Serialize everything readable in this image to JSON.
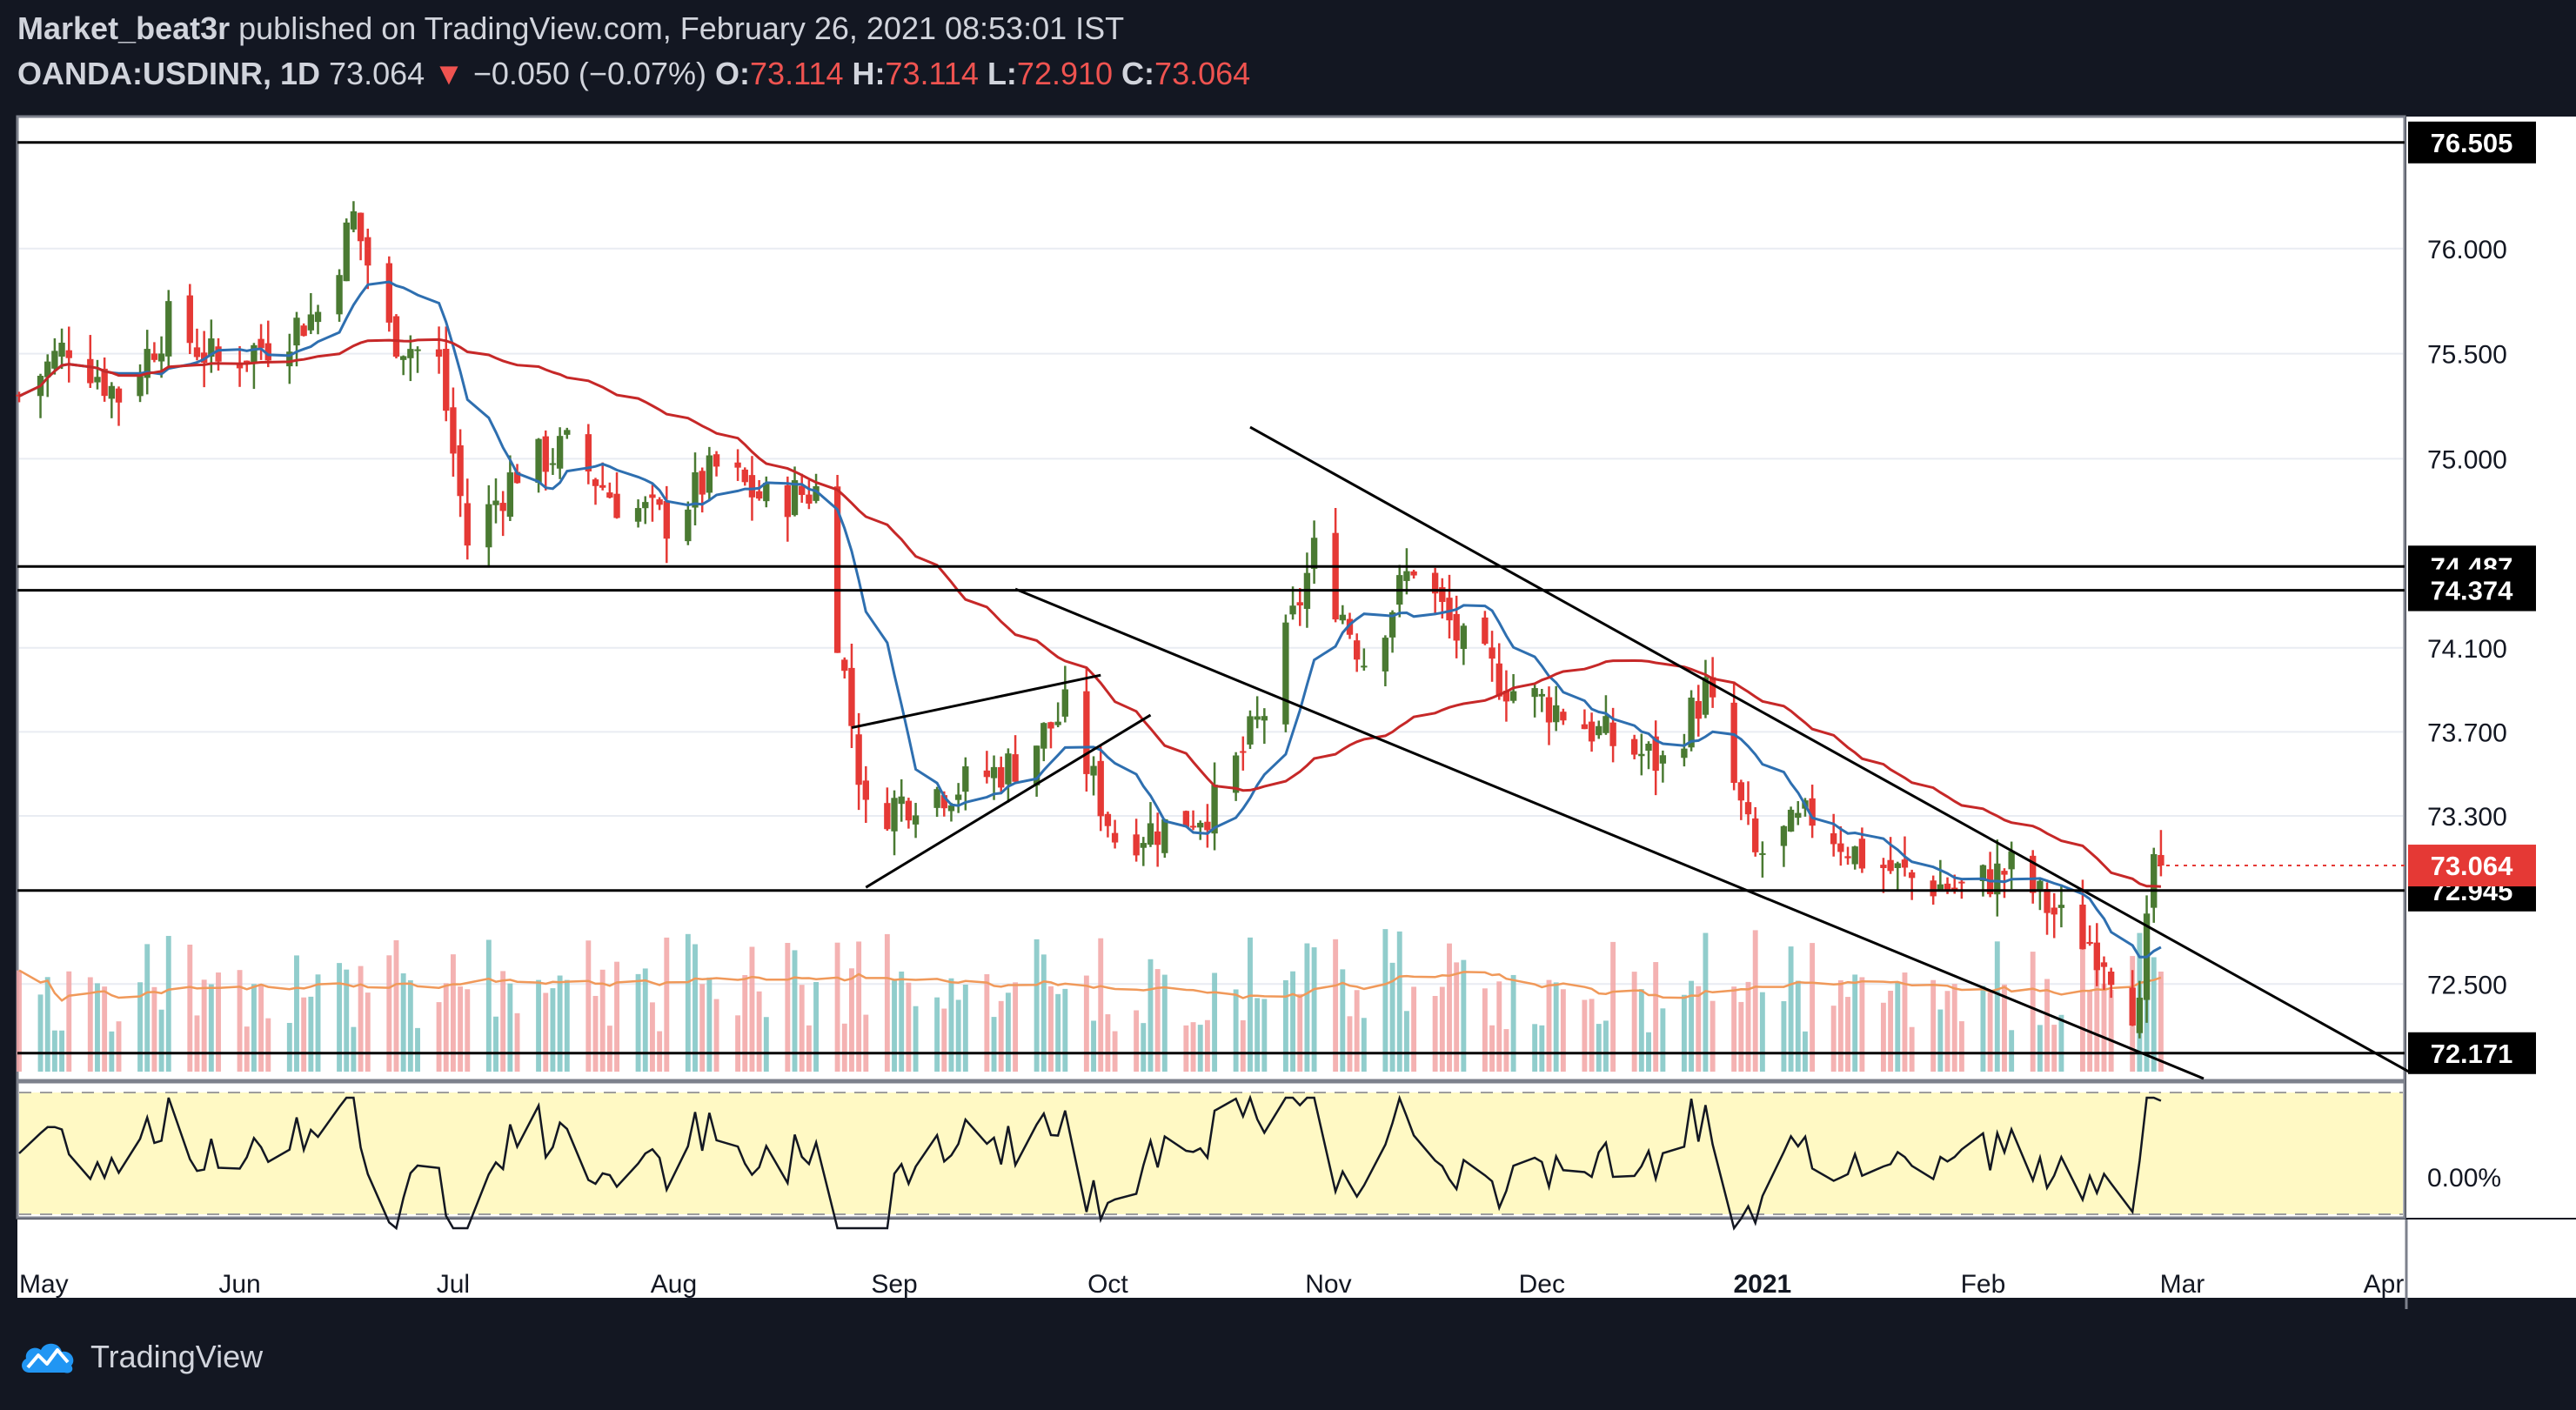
{
  "header": {
    "author": "Market_beat3r",
    "published": "published on TradingView.com, February 26, 2021 08:53:01 IST",
    "symbol": "OANDA:USDINR, 1D",
    "last": "73.064",
    "arrow": "▼",
    "change": "−0.050 (−0.07%)",
    "o_label": "O:",
    "o_value": "73.114",
    "h_label": "H:",
    "h_value": "73.114",
    "l_label": "L:",
    "l_value": "72.910",
    "c_label": "C:",
    "c_value": "73.064"
  },
  "footer": {
    "brand": "TradingView",
    "logo_icon": "tradingview-cloud-icon"
  },
  "colors": {
    "background": "#131722",
    "up": "#4a7a32",
    "down": "#e53935",
    "ma_fast": "#2e6fb0",
    "ma_slow": "#c62828",
    "vol_up": "#7ec4c3",
    "vol_down": "#f2a5a5",
    "vol_ma": "#f0995a",
    "oscillator_band": "#fff9c4"
  },
  "chart_data": {
    "type": "candlestick",
    "symbol": "OANDA:USDINR",
    "timeframe": "1D",
    "ylim": [
      72.05,
      76.62
    ],
    "y_ticks": [
      72.5,
      73.3,
      73.7,
      74.1,
      75.0,
      75.5,
      76.0
    ],
    "x_ticks": [
      "May",
      "Jun",
      "Jul",
      "Aug",
      "Sep",
      "Oct",
      "Nov",
      "Dec",
      "2021",
      "Feb",
      "Mar",
      "Apr"
    ],
    "horizontal_levels": [
      {
        "value": 76.505,
        "label": "76.505"
      },
      {
        "value": 74.487,
        "label": "74.487"
      },
      {
        "value": 74.374,
        "label": "74.374"
      },
      {
        "value": 72.945,
        "label": "72.945"
      },
      {
        "value": 72.171,
        "label": "72.171"
      }
    ],
    "last_price": {
      "value": 73.064,
      "label": "73.064"
    },
    "trendlines": [
      {
        "from": [
          "2020-08-26",
          73.72
        ],
        "to": [
          "2020-09-30",
          73.97
        ]
      },
      {
        "from": [
          "2020-08-28",
          72.96
        ],
        "to": [
          "2020-10-07",
          73.78
        ]
      },
      {
        "from": [
          "2020-09-18",
          74.38
        ],
        "to": [
          "2021-03-04",
          72.05
        ]
      },
      {
        "from": [
          "2020-10-21",
          75.15
        ],
        "to": [
          "2021-04-02",
          72.08
        ]
      }
    ],
    "ohlc_anchors": [
      {
        "date": "2020-05-01",
        "close": 75.3
      },
      {
        "date": "2020-05-08",
        "close": 75.55
      },
      {
        "date": "2020-05-15",
        "close": 75.3
      },
      {
        "date": "2020-05-22",
        "close": 75.65
      },
      {
        "date": "2020-05-29",
        "close": 75.45
      },
      {
        "date": "2020-06-05",
        "close": 75.55
      },
      {
        "date": "2020-06-12",
        "close": 75.7
      },
      {
        "date": "2020-06-17",
        "close": 76.15
      },
      {
        "date": "2020-06-22",
        "close": 75.6
      },
      {
        "date": "2020-06-29",
        "close": 75.45
      },
      {
        "date": "2020-07-03",
        "close": 74.6
      },
      {
        "date": "2020-07-10",
        "close": 74.95
      },
      {
        "date": "2020-07-17",
        "close": 75.05
      },
      {
        "date": "2020-07-24",
        "close": 74.8
      },
      {
        "date": "2020-07-31",
        "close": 74.7
      },
      {
        "date": "2020-08-07",
        "close": 74.95
      },
      {
        "date": "2020-08-14",
        "close": 74.8
      },
      {
        "date": "2020-08-21",
        "close": 74.85
      },
      {
        "date": "2020-08-28",
        "close": 73.3
      },
      {
        "date": "2020-09-04",
        "close": 73.4
      },
      {
        "date": "2020-09-11",
        "close": 73.45
      },
      {
        "date": "2020-09-18",
        "close": 73.55
      },
      {
        "date": "2020-09-25",
        "close": 73.8
      },
      {
        "date": "2020-10-02",
        "close": 73.2
      },
      {
        "date": "2020-10-09",
        "close": 73.25
      },
      {
        "date": "2020-10-16",
        "close": 73.35
      },
      {
        "date": "2020-10-23",
        "close": 73.8
      },
      {
        "date": "2020-10-30",
        "close": 74.55
      },
      {
        "date": "2020-11-06",
        "close": 74.05
      },
      {
        "date": "2020-11-13",
        "close": 74.5
      },
      {
        "date": "2020-11-20",
        "close": 74.1
      },
      {
        "date": "2020-11-27",
        "close": 73.9
      },
      {
        "date": "2020-12-04",
        "close": 73.8
      },
      {
        "date": "2020-12-11",
        "close": 73.65
      },
      {
        "date": "2020-12-18",
        "close": 73.55
      },
      {
        "date": "2020-12-24",
        "close": 73.9
      },
      {
        "date": "2020-12-31",
        "close": 73.1
      },
      {
        "date": "2021-01-08",
        "close": 73.3
      },
      {
        "date": "2021-01-15",
        "close": 73.1
      },
      {
        "date": "2021-01-22",
        "close": 73.0
      },
      {
        "date": "2021-01-29",
        "close": 72.95
      },
      {
        "date": "2021-02-05",
        "close": 73.05
      },
      {
        "date": "2021-02-12",
        "close": 72.8
      },
      {
        "date": "2021-02-18",
        "close": 72.65
      },
      {
        "date": "2021-02-23",
        "close": 72.35
      },
      {
        "date": "2021-02-25",
        "close": 73.11
      },
      {
        "date": "2021-02-26",
        "close": 73.064
      }
    ],
    "oscillator": {
      "zero_label": "0.00%"
    }
  }
}
